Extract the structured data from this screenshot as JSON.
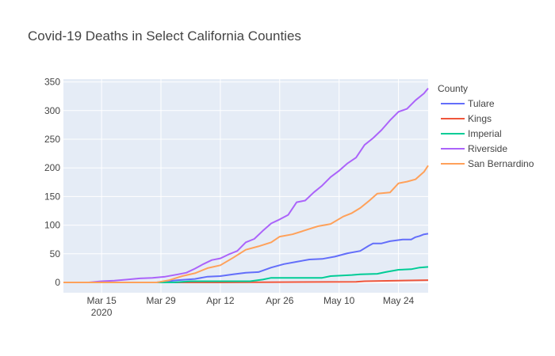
{
  "chart_data": {
    "type": "line",
    "title": "Covid-19 Deaths in Select California Counties",
    "xlabel": "",
    "ylabel": "",
    "x_axis_type": "date",
    "xlim": [
      "2020-03-06",
      "2020-05-31"
    ],
    "ylim": [
      -18,
      355
    ],
    "x_ticks": [
      {
        "date": "2020-03-15",
        "label": "Mar 15",
        "sublabel": "2020"
      },
      {
        "date": "2020-03-29",
        "label": "Mar 29",
        "sublabel": ""
      },
      {
        "date": "2020-04-12",
        "label": "Apr 12",
        "sublabel": ""
      },
      {
        "date": "2020-04-26",
        "label": "Apr 26",
        "sublabel": ""
      },
      {
        "date": "2020-05-10",
        "label": "May 10",
        "sublabel": ""
      },
      {
        "date": "2020-05-24",
        "label": "May 24",
        "sublabel": ""
      }
    ],
    "y_ticks": [
      0,
      50,
      100,
      150,
      200,
      250,
      300,
      350
    ],
    "grid": true,
    "legend_title": "County",
    "legend_position": "right",
    "series": [
      {
        "name": "Tulare",
        "color": "#636efa",
        "points": [
          [
            "2020-03-06",
            0
          ],
          [
            "2020-03-28",
            0
          ],
          [
            "2020-04-02",
            4
          ],
          [
            "2020-04-06",
            6
          ],
          [
            "2020-04-09",
            10
          ],
          [
            "2020-04-12",
            11
          ],
          [
            "2020-04-15",
            14
          ],
          [
            "2020-04-18",
            17
          ],
          [
            "2020-04-21",
            18
          ],
          [
            "2020-04-24",
            26
          ],
          [
            "2020-04-27",
            32
          ],
          [
            "2020-04-30",
            36
          ],
          [
            "2020-05-03",
            40
          ],
          [
            "2020-05-06",
            41
          ],
          [
            "2020-05-09",
            45
          ],
          [
            "2020-05-12",
            51
          ],
          [
            "2020-05-15",
            55
          ],
          [
            "2020-05-17",
            64
          ],
          [
            "2020-05-18",
            68
          ],
          [
            "2020-05-20",
            68
          ],
          [
            "2020-05-22",
            72
          ],
          [
            "2020-05-25",
            75
          ],
          [
            "2020-05-27",
            75
          ],
          [
            "2020-05-28",
            79
          ],
          [
            "2020-05-29",
            81
          ],
          [
            "2020-05-30",
            84
          ],
          [
            "2020-05-31",
            85
          ]
        ]
      },
      {
        "name": "Kings",
        "color": "#ef553b",
        "points": [
          [
            "2020-03-06",
            0
          ],
          [
            "2020-04-12",
            0
          ],
          [
            "2020-05-14",
            1
          ],
          [
            "2020-05-16",
            2
          ],
          [
            "2020-05-31",
            4
          ]
        ]
      },
      {
        "name": "Imperial",
        "color": "#00cc96",
        "points": [
          [
            "2020-03-06",
            0
          ],
          [
            "2020-04-01",
            0
          ],
          [
            "2020-04-05",
            2
          ],
          [
            "2020-04-19",
            2
          ],
          [
            "2020-04-22",
            5
          ],
          [
            "2020-04-24",
            8
          ],
          [
            "2020-05-06",
            8
          ],
          [
            "2020-05-08",
            11
          ],
          [
            "2020-05-13",
            13
          ],
          [
            "2020-05-15",
            14
          ],
          [
            "2020-05-19",
            15
          ],
          [
            "2020-05-21",
            18
          ],
          [
            "2020-05-24",
            22
          ],
          [
            "2020-05-27",
            23
          ],
          [
            "2020-05-29",
            26
          ],
          [
            "2020-05-31",
            27
          ]
        ]
      },
      {
        "name": "Riverside",
        "color": "#ab63fa",
        "points": [
          [
            "2020-03-06",
            0
          ],
          [
            "2020-03-12",
            0
          ],
          [
            "2020-03-15",
            2
          ],
          [
            "2020-03-18",
            3
          ],
          [
            "2020-03-21",
            5
          ],
          [
            "2020-03-24",
            7
          ],
          [
            "2020-03-27",
            8
          ],
          [
            "2020-03-30",
            10
          ],
          [
            "2020-04-02",
            14
          ],
          [
            "2020-04-04",
            17
          ],
          [
            "2020-04-06",
            24
          ],
          [
            "2020-04-08",
            32
          ],
          [
            "2020-04-10",
            39
          ],
          [
            "2020-04-12",
            42
          ],
          [
            "2020-04-14",
            49
          ],
          [
            "2020-04-16",
            55
          ],
          [
            "2020-04-18",
            70
          ],
          [
            "2020-04-20",
            76
          ],
          [
            "2020-04-22",
            90
          ],
          [
            "2020-04-24",
            103
          ],
          [
            "2020-04-26",
            110
          ],
          [
            "2020-04-28",
            118
          ],
          [
            "2020-04-30",
            140
          ],
          [
            "2020-05-02",
            143
          ],
          [
            "2020-05-04",
            157
          ],
          [
            "2020-05-06",
            169
          ],
          [
            "2020-05-08",
            184
          ],
          [
            "2020-05-10",
            195
          ],
          [
            "2020-05-12",
            208
          ],
          [
            "2020-05-14",
            218
          ],
          [
            "2020-05-16",
            240
          ],
          [
            "2020-05-18",
            252
          ],
          [
            "2020-05-20",
            266
          ],
          [
            "2020-05-22",
            283
          ],
          [
            "2020-05-24",
            298
          ],
          [
            "2020-05-26",
            303
          ],
          [
            "2020-05-28",
            318
          ],
          [
            "2020-05-30",
            330
          ],
          [
            "2020-05-31",
            339
          ]
        ]
      },
      {
        "name": "San Bernardino",
        "color": "#ffa15a",
        "points": [
          [
            "2020-03-06",
            0
          ],
          [
            "2020-03-28",
            0
          ],
          [
            "2020-03-31",
            4
          ],
          [
            "2020-04-03",
            11
          ],
          [
            "2020-04-06",
            16
          ],
          [
            "2020-04-09",
            25
          ],
          [
            "2020-04-12",
            30
          ],
          [
            "2020-04-15",
            43
          ],
          [
            "2020-04-18",
            57
          ],
          [
            "2020-04-21",
            63
          ],
          [
            "2020-04-24",
            70
          ],
          [
            "2020-04-26",
            80
          ],
          [
            "2020-04-29",
            84
          ],
          [
            "2020-05-02",
            91
          ],
          [
            "2020-05-05",
            98
          ],
          [
            "2020-05-08",
            102
          ],
          [
            "2020-05-11",
            115
          ],
          [
            "2020-05-13",
            121
          ],
          [
            "2020-05-15",
            130
          ],
          [
            "2020-05-17",
            142
          ],
          [
            "2020-05-19",
            155
          ],
          [
            "2020-05-22",
            157
          ],
          [
            "2020-05-24",
            173
          ],
          [
            "2020-05-26",
            176
          ],
          [
            "2020-05-28",
            180
          ],
          [
            "2020-05-30",
            193
          ],
          [
            "2020-05-31",
            204
          ]
        ]
      }
    ]
  }
}
